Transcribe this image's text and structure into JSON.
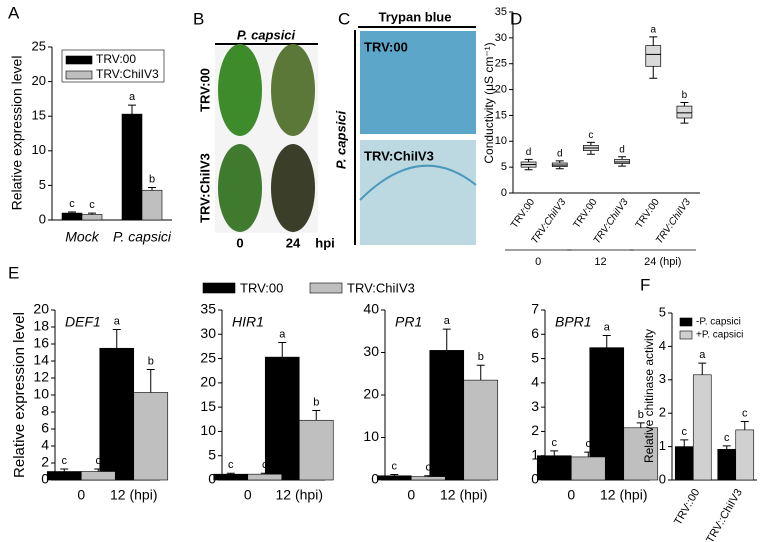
{
  "panel_letters": [
    "A",
    "B",
    "C",
    "D",
    "E",
    "F"
  ],
  "photo_panels": {
    "B": {
      "title": "P. capsici",
      "rows": [
        "TRV:00",
        "TRV:ChiIV3"
      ],
      "columns": [
        "0",
        "24"
      ],
      "column_unit": "hpi"
    },
    "C": {
      "title": "Trypan blue",
      "side_label": "P. capsici",
      "insets": [
        "TRV:00",
        "TRV:ChiIV3"
      ]
    }
  },
  "chart_data": [
    {
      "type": "bar",
      "ylabel": "Relative expression level",
      "categories": [
        "Mock",
        "P. capsici"
      ],
      "ylim": [
        0,
        25
      ],
      "yticks": [
        0,
        5,
        10,
        15,
        20,
        25
      ],
      "series": [
        {
          "name": "TRV:00",
          "color": "#000000",
          "values": [
            1.0,
            15.3
          ],
          "errors": [
            0.15,
            1.3
          ],
          "letters": [
            "c",
            "a"
          ]
        },
        {
          "name": "TRV:ChiIV3",
          "color": "#bfbfbf",
          "values": [
            0.8,
            4.3
          ],
          "errors": [
            0.2,
            0.4
          ],
          "letters": [
            "c",
            "b"
          ]
        }
      ]
    },
    {
      "type": "box",
      "ylabel": "Conductivity (μS cm⁻¹)",
      "categories": [
        "TRV:00",
        "TRV:ChiIV3",
        "TRV:00",
        "TRV:ChiIV3",
        "TRV:00",
        "TRV:ChiIV3"
      ],
      "groups": [
        "0",
        "12",
        "24 (hpi)"
      ],
      "ylim": [
        0,
        35
      ],
      "yticks": [
        0,
        5,
        10,
        15,
        20,
        25,
        30,
        35
      ],
      "color": "#d9d9d9",
      "boxes": [
        {
          "min": 4.5,
          "q1": 5.0,
          "median": 5.5,
          "q3": 6.0,
          "max": 6.5
        },
        {
          "min": 4.7,
          "q1": 5.1,
          "median": 5.4,
          "q3": 5.8,
          "max": 6.2
        },
        {
          "min": 7.5,
          "q1": 8.2,
          "median": 8.7,
          "q3": 9.2,
          "max": 9.8
        },
        {
          "min": 5.2,
          "q1": 5.7,
          "median": 6.0,
          "q3": 6.5,
          "max": 7.0
        },
        {
          "min": 22.2,
          "q1": 24.5,
          "median": 26.8,
          "q3": 28.5,
          "max": 30.2
        },
        {
          "min": 13.5,
          "q1": 14.5,
          "median": 15.5,
          "q3": 16.8,
          "max": 17.5
        }
      ],
      "letters": [
        "d",
        "d",
        "c",
        "d",
        "a",
        "b"
      ]
    },
    {
      "type": "bar",
      "ylabel": "Relative expression level",
      "categories": [
        "0",
        "12 (hpi)"
      ],
      "series": [
        {
          "name": "TRV:00",
          "color": "#000000"
        },
        {
          "name": "TRV:ChiIV3",
          "color": "#bfbfbf"
        }
      ],
      "panels": [
        {
          "title": "DEF1",
          "ylim": [
            0,
            20
          ],
          "yticks": [
            0,
            2,
            4,
            6,
            8,
            10,
            12,
            14,
            16,
            18,
            20
          ],
          "series": [
            {
              "values": [
                1.0,
                15.5
              ],
              "errors": [
                0.3,
                2.2
              ],
              "letters": [
                "c",
                "a"
              ]
            },
            {
              "values": [
                1.0,
                10.3
              ],
              "errors": [
                0.3,
                2.7
              ],
              "letters": [
                "c",
                "b"
              ]
            }
          ]
        },
        {
          "title": "HIR1",
          "ylim": [
            0,
            35
          ],
          "yticks": [
            0,
            5,
            10,
            15,
            20,
            25,
            30,
            35
          ],
          "series": [
            {
              "values": [
                1.2,
                25.3
              ],
              "errors": [
                0.2,
                3.0
              ],
              "letters": [
                "c",
                "a"
              ]
            },
            {
              "values": [
                1.2,
                12.3
              ],
              "errors": [
                0.2,
                2.0
              ],
              "letters": [
                "c",
                "b"
              ]
            }
          ]
        },
        {
          "title": "PR1",
          "ylim": [
            0,
            40
          ],
          "yticks": [
            0,
            10,
            20,
            30,
            40
          ],
          "series": [
            {
              "values": [
                1.0,
                30.5
              ],
              "errors": [
                0.3,
                5.0
              ],
              "letters": [
                "c",
                "a"
              ]
            },
            {
              "values": [
                0.8,
                23.5
              ],
              "errors": [
                0.2,
                3.5
              ],
              "letters": [
                "c",
                "b"
              ]
            }
          ]
        },
        {
          "title": "BPR1",
          "ylim": [
            0,
            7
          ],
          "yticks": [
            0,
            1,
            2,
            3,
            4,
            5,
            6,
            7
          ],
          "series": [
            {
              "values": [
                1.0,
                5.45
              ],
              "errors": [
                0.2,
                0.5
              ],
              "letters": [
                "c",
                "a"
              ]
            },
            {
              "values": [
                0.95,
                2.15
              ],
              "errors": [
                0.2,
                0.2
              ],
              "letters": [
                "c",
                "b"
              ]
            }
          ]
        }
      ]
    },
    {
      "type": "bar",
      "ylabel": "Relative chitinase activity",
      "categories": [
        "TRV::00",
        "TRV::ChiIV3"
      ],
      "ylim": [
        0,
        5
      ],
      "yticks": [
        0,
        1,
        2,
        3,
        4,
        5
      ],
      "series": [
        {
          "name": "-P. capsici",
          "color": "#000000",
          "values": [
            1.0,
            0.92
          ],
          "errors": [
            0.2,
            0.1
          ],
          "letters": [
            "c",
            "c"
          ]
        },
        {
          "name": "+P. capsici",
          "color": "#d0d0d0",
          "values": [
            3.15,
            1.5
          ],
          "errors": [
            0.35,
            0.25
          ],
          "letters": [
            "a",
            "c"
          ]
        }
      ]
    }
  ]
}
